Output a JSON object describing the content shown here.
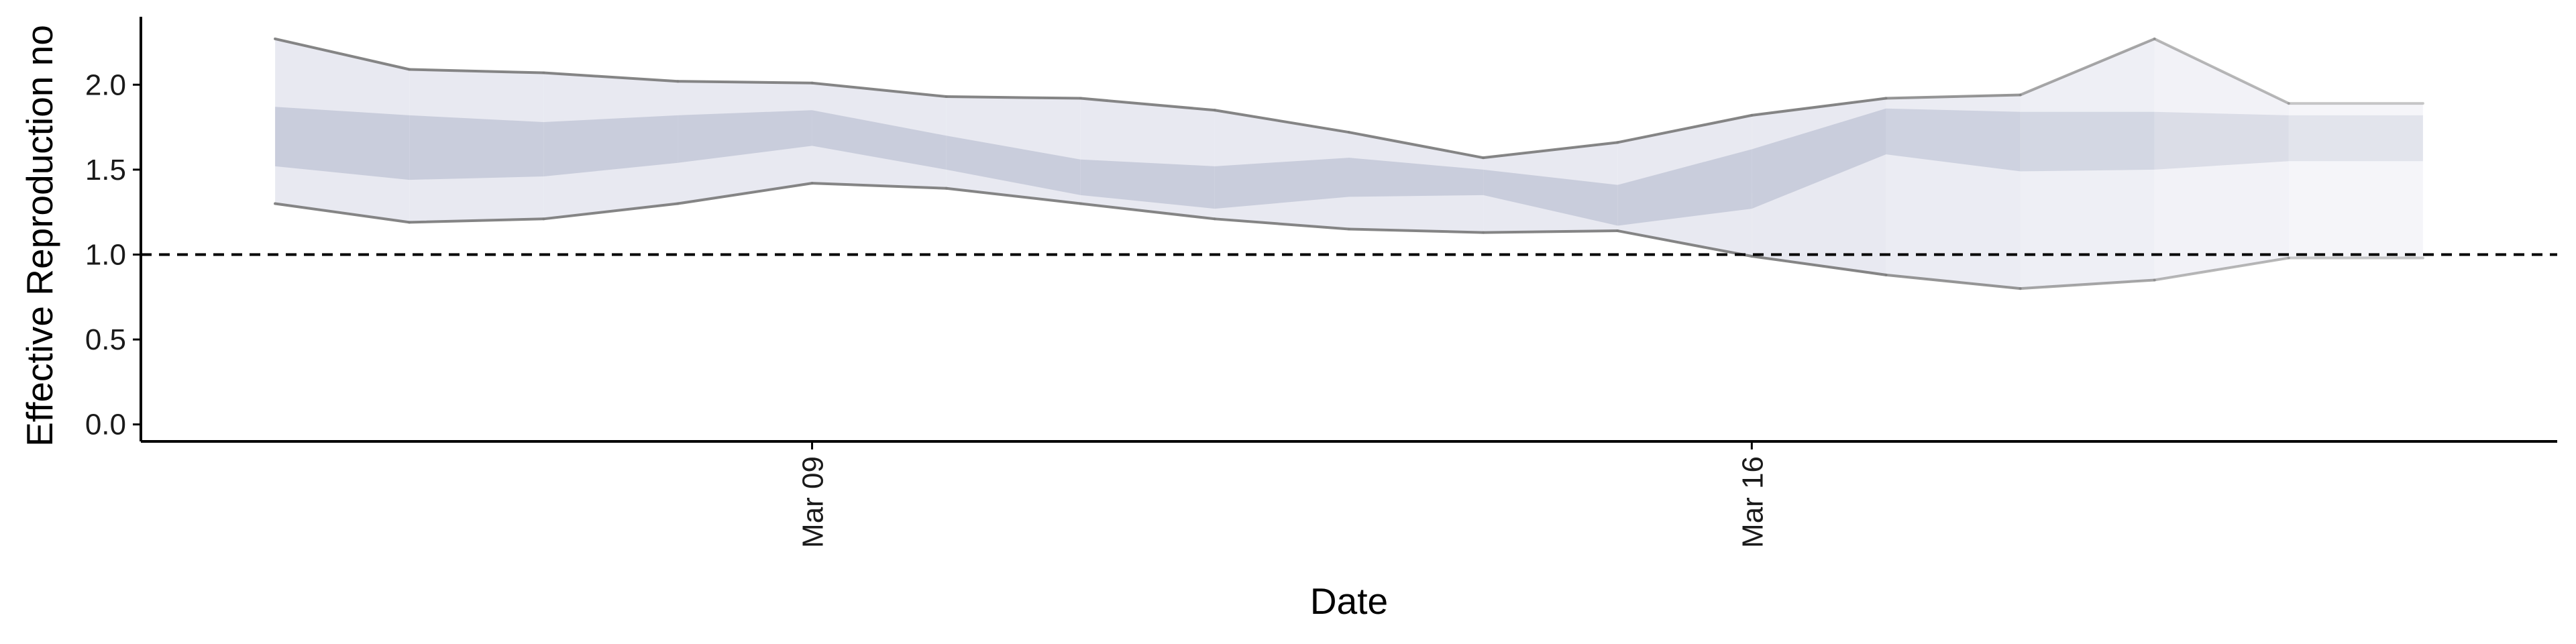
{
  "chart_data": {
    "type": "area",
    "title": "",
    "xlabel": "Date",
    "ylabel": "Effective Reproduction no",
    "xlim": [
      "2020-03-04",
      "2020-03-22"
    ],
    "ylim": [
      -0.1,
      2.4
    ],
    "grid": false,
    "legend": "none",
    "x_ticks": [
      {
        "date": "2020-03-09",
        "label": "Mar 09"
      },
      {
        "date": "2020-03-16",
        "label": "Mar 16"
      }
    ],
    "y_ticks": [
      0.0,
      0.5,
      1.0,
      1.5,
      2.0
    ],
    "y_tick_labels": [
      "0.0",
      "0.5",
      "1.0",
      "1.5",
      "2.0"
    ],
    "reference_line": {
      "y": 1.0,
      "style": "dashed"
    },
    "dates": [
      "2020-03-05",
      "2020-03-06",
      "2020-03-07",
      "2020-03-08",
      "2020-03-09",
      "2020-03-10",
      "2020-03-11",
      "2020-03-12",
      "2020-03-13",
      "2020-03-14",
      "2020-03-15",
      "2020-03-16",
      "2020-03-17",
      "2020-03-18",
      "2020-03-19",
      "2020-03-20",
      "2020-03-21"
    ],
    "series": [
      {
        "values": [
          2.27,
          2.09,
          2.07,
          2.02,
          2.01,
          1.93,
          1.92,
          1.85,
          1.72,
          1.57,
          1.66,
          1.82,
          1.92,
          1.94,
          2.27,
          1.89,
          1.89
        ],
        "band_role": "outer_upper"
      },
      {
        "values": [
          1.3,
          1.19,
          1.21,
          1.3,
          1.42,
          1.39,
          1.3,
          1.21,
          1.15,
          1.13,
          1.14,
          0.99,
          0.88,
          0.8,
          0.85,
          0.98,
          0.98
        ],
        "band_role": "outer_lower"
      },
      {
        "values": [
          1.87,
          1.82,
          1.78,
          1.82,
          1.85,
          1.7,
          1.56,
          1.52,
          1.57,
          1.5,
          1.41,
          1.62,
          1.86,
          1.84,
          1.84,
          1.82,
          1.82
        ],
        "band_role": "inner_upper"
      },
      {
        "values": [
          1.52,
          1.44,
          1.46,
          1.54,
          1.64,
          1.5,
          1.35,
          1.27,
          1.34,
          1.35,
          1.17,
          1.27,
          1.59,
          1.49,
          1.5,
          1.55,
          1.55
        ],
        "band_role": "inner_lower"
      }
    ],
    "colors": {
      "outer_band": "#e8e9f1",
      "inner_band": "#c5cad9",
      "bound_line": "#7e7e7e",
      "reference_line": "#000000",
      "axis": "#000000"
    },
    "fade_start_index": 12
  }
}
